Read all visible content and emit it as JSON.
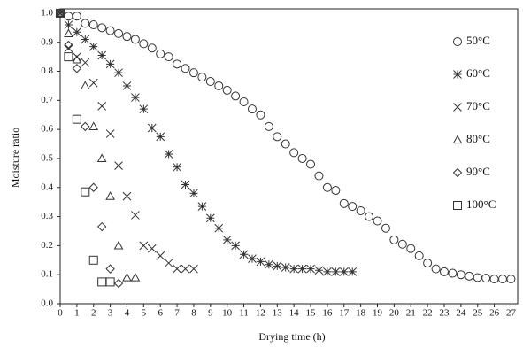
{
  "chart_data": {
    "type": "scatter",
    "x_label": "Drying time (h)",
    "y_label": "Moisture ratio",
    "xlim": [
      0,
      27.4
    ],
    "ylim": [
      0,
      1.015
    ],
    "xticks": [
      0,
      1,
      2,
      3,
      4,
      5,
      6,
      7,
      8,
      9,
      10,
      11,
      12,
      13,
      14,
      15,
      16,
      17,
      18,
      19,
      20,
      21,
      22,
      23,
      24,
      25,
      26,
      27
    ],
    "yticks": [
      {
        "value": 0,
        "label": "0.0"
      },
      0.1,
      0.2,
      0.3,
      0.4,
      0.5,
      0.6,
      0.7,
      0.8,
      0.9,
      {
        "value": 1,
        "label": "1.0"
      }
    ],
    "legend": "right",
    "series": [
      {
        "name": "50°C",
        "marker": "circle",
        "color": "#333",
        "x": [
          0,
          0.5,
          1,
          1.5,
          2,
          2.5,
          3,
          3.5,
          4,
          4.5,
          5,
          5.5,
          6,
          6.5,
          7,
          7.5,
          8,
          8.5,
          9,
          9.5,
          10,
          10.5,
          11,
          11.5,
          12,
          12.5,
          13,
          13.5,
          14,
          14.5,
          15,
          15.5,
          16,
          16.5,
          17,
          17.5,
          18,
          18.5,
          19,
          19.5,
          20,
          20.5,
          21,
          21.5,
          22,
          22.5,
          23,
          23.5,
          24,
          24.5,
          25,
          25.5,
          26,
          26.5,
          27
        ],
        "values": [
          1.0,
          0.99,
          0.99,
          0.965,
          0.96,
          0.95,
          0.94,
          0.93,
          0.92,
          0.91,
          0.895,
          0.88,
          0.86,
          0.85,
          0.825,
          0.81,
          0.795,
          0.78,
          0.765,
          0.75,
          0.735,
          0.715,
          0.695,
          0.67,
          0.65,
          0.61,
          0.575,
          0.55,
          0.52,
          0.5,
          0.48,
          0.44,
          0.4,
          0.39,
          0.345,
          0.335,
          0.32,
          0.3,
          0.285,
          0.26,
          0.22,
          0.205,
          0.19,
          0.165,
          0.14,
          0.12,
          0.11,
          0.105,
          0.1,
          0.095,
          0.09,
          0.088,
          0.085,
          0.085,
          0.085
        ]
      },
      {
        "name": "60°C",
        "marker": "star",
        "color": "#333",
        "x": [
          0,
          0.5,
          1,
          1.5,
          2,
          2.5,
          3,
          3.5,
          4,
          4.5,
          5,
          5.5,
          6,
          6.5,
          7,
          7.5,
          8,
          8.5,
          9,
          9.5,
          10,
          10.5,
          11,
          11.5,
          12,
          12.5,
          13,
          13.5,
          14,
          14.5,
          15,
          15.5,
          16,
          16.5,
          17,
          17.5
        ],
        "values": [
          1.0,
          0.96,
          0.935,
          0.91,
          0.885,
          0.855,
          0.825,
          0.795,
          0.75,
          0.71,
          0.67,
          0.605,
          0.575,
          0.515,
          0.47,
          0.41,
          0.38,
          0.335,
          0.295,
          0.26,
          0.22,
          0.2,
          0.17,
          0.155,
          0.145,
          0.135,
          0.13,
          0.125,
          0.12,
          0.12,
          0.12,
          0.115,
          0.11,
          0.11,
          0.11,
          0.11
        ]
      },
      {
        "name": "70°C",
        "marker": "cross",
        "color": "#333",
        "x": [
          0,
          0.5,
          1,
          1.5,
          2,
          2.5,
          3,
          3.5,
          4,
          4.5,
          5,
          5.5,
          6,
          6.5,
          7,
          7.5,
          8
        ],
        "values": [
          1.0,
          0.88,
          0.85,
          0.83,
          0.76,
          0.68,
          0.585,
          0.475,
          0.37,
          0.305,
          0.2,
          0.19,
          0.165,
          0.14,
          0.12,
          0.12,
          0.12
        ]
      },
      {
        "name": "80°C",
        "marker": "triangle",
        "color": "#333",
        "x": [
          0,
          0.5,
          1,
          1.5,
          2,
          2.5,
          3,
          3.5,
          4,
          4.5
        ],
        "values": [
          1.0,
          0.93,
          0.84,
          0.75,
          0.61,
          0.5,
          0.37,
          0.2,
          0.09,
          0.09
        ]
      },
      {
        "name": "90°C",
        "marker": "diamond",
        "color": "#333",
        "x": [
          0,
          0.5,
          1,
          1.5,
          2,
          2.5,
          3,
          3.5
        ],
        "values": [
          1.0,
          0.89,
          0.81,
          0.61,
          0.4,
          0.265,
          0.12,
          0.07
        ]
      },
      {
        "name": "100°C",
        "marker": "square",
        "color": "#333",
        "x": [
          0,
          0.5,
          1,
          1.5,
          2,
          2.5,
          3
        ],
        "values": [
          1.0,
          0.85,
          0.635,
          0.385,
          0.15,
          0.075,
          0.075
        ]
      }
    ]
  }
}
